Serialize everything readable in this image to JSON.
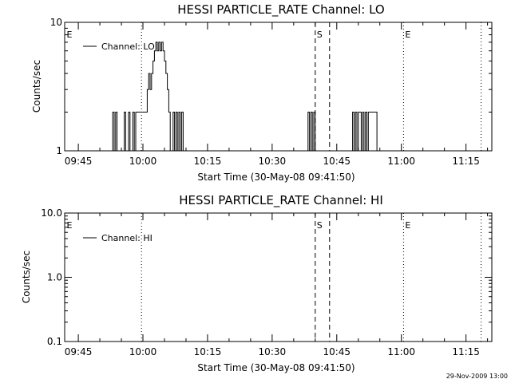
{
  "chart_data": [
    {
      "type": "line",
      "title": "HESSI PARTICLE_RATE Channel: LO",
      "xlabel": "Start Time (30-May-08 09:41:50)",
      "ylabel": "Counts/sec",
      "x_range": [
        "09:41:50",
        "11:21:00"
      ],
      "x_ticks": [
        "09:45",
        "10:00",
        "10:15",
        "10:30",
        "10:45",
        "11:00",
        "11:15"
      ],
      "y_scale": "log",
      "ylim": [
        1,
        10
      ],
      "y_ticks": [
        "1",
        "10"
      ],
      "legend": {
        "label": "Channel: LO",
        "position": "top-left"
      },
      "markers": [
        {
          "label": "E",
          "time": "09:41:50",
          "style": "dotted"
        },
        {
          "label": "",
          "time": "09:59:40",
          "style": "dotted"
        },
        {
          "label": "S",
          "time": "10:40:00",
          "style": "dashed"
        },
        {
          "label": "",
          "time": "10:43:20",
          "style": "dashed"
        },
        {
          "label": "E",
          "time": "11:00:30",
          "style": "dotted"
        },
        {
          "label": "",
          "time": "11:18:30",
          "style": "dotted"
        }
      ],
      "series": [
        {
          "name": "Channel: LO",
          "x": [
            "09:52:40",
            "09:53:00",
            "09:53:20",
            "09:53:40",
            "09:54:00",
            "09:55:20",
            "09:55:40",
            "09:56:00",
            "09:56:20",
            "09:56:40",
            "09:57:20",
            "09:57:40",
            "09:58:00",
            "09:58:20",
            "09:58:40",
            "09:59:00",
            "09:59:20",
            "09:59:40",
            "10:00:00",
            "10:00:20",
            "10:00:40",
            "10:01:00",
            "10:01:20",
            "10:01:40",
            "10:02:00",
            "10:02:20",
            "10:02:40",
            "10:03:00",
            "10:03:20",
            "10:03:40",
            "10:04:00",
            "10:04:20",
            "10:04:40",
            "10:05:00",
            "10:05:20",
            "10:05:40",
            "10:06:00",
            "10:06:20",
            "10:06:40",
            "10:07:00",
            "10:07:20",
            "10:07:40",
            "10:08:00",
            "10:08:20",
            "10:08:40",
            "10:09:00",
            "10:09:20",
            "10:38:00",
            "10:38:20",
            "10:38:40",
            "10:39:00",
            "10:39:20",
            "10:39:40",
            "10:40:00",
            "10:40:20",
            "10:40:40",
            "10:48:20",
            "10:48:40",
            "10:49:00",
            "10:49:20",
            "10:49:40",
            "10:50:00",
            "10:50:20",
            "10:50:40",
            "10:51:00",
            "10:51:20",
            "10:51:40",
            "10:52:00",
            "10:52:20",
            "10:52:40",
            "10:53:00",
            "10:53:20",
            "10:53:40",
            "10:54:00",
            "10:54:20",
            "10:54:40",
            "10:55:00"
          ],
          "values": [
            1,
            2,
            1,
            2,
            1,
            1,
            2,
            1,
            1,
            2,
            1,
            2,
            1,
            2,
            2,
            2,
            2,
            2,
            2,
            2,
            2,
            3,
            4,
            3,
            4,
            5,
            6,
            7,
            6,
            7,
            6,
            7,
            6,
            5,
            4,
            3,
            2,
            1,
            1,
            2,
            1,
            2,
            1,
            2,
            1,
            2,
            1,
            1,
            2,
            1,
            2,
            1,
            2,
            1,
            1,
            1,
            1,
            2,
            1,
            2,
            1,
            2,
            2,
            1,
            2,
            1,
            2,
            1,
            2,
            2,
            2,
            2,
            2,
            2,
            1,
            1,
            1
          ]
        }
      ]
    },
    {
      "type": "line",
      "title": "HESSI PARTICLE_RATE Channel: HI",
      "xlabel": "Start Time (30-May-08 09:41:50)",
      "ylabel": "Counts/sec",
      "x_range": [
        "09:41:50",
        "11:21:00"
      ],
      "x_ticks": [
        "09:45",
        "10:00",
        "10:15",
        "10:30",
        "10:45",
        "11:00",
        "11:15"
      ],
      "y_scale": "log",
      "ylim": [
        0.1,
        10
      ],
      "y_ticks": [
        "0.1",
        "1.0",
        "10.0"
      ],
      "legend": {
        "label": "Channel: HI",
        "position": "top-left"
      },
      "markers": [
        {
          "label": "E",
          "time": "09:41:50",
          "style": "dotted"
        },
        {
          "label": "",
          "time": "09:59:40",
          "style": "dotted"
        },
        {
          "label": "S",
          "time": "10:40:00",
          "style": "dashed"
        },
        {
          "label": "",
          "time": "10:43:20",
          "style": "dashed"
        },
        {
          "label": "E",
          "time": "11:00:30",
          "style": "dotted"
        },
        {
          "label": "",
          "time": "11:18:30",
          "style": "dotted"
        }
      ],
      "series": [
        {
          "name": "Channel: HI",
          "x": [],
          "values": []
        }
      ]
    }
  ],
  "footer": {
    "date_stamp": "29-Nov-2009 13:00"
  }
}
